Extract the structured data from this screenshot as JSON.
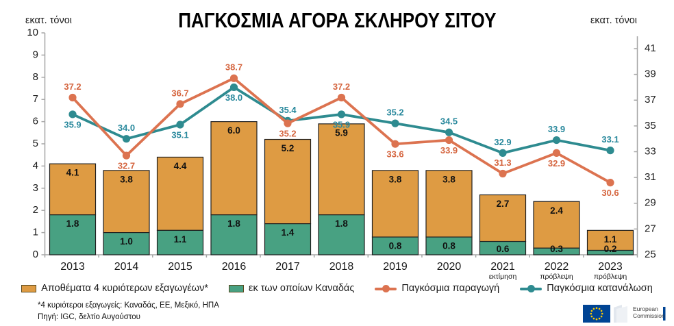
{
  "title": "ΠΑΓΚΟΣΜΙΑ ΑΓΟΡΑ ΣΚΛΗΡΟΥ ΣΙΤΟΥ",
  "axis_units": {
    "left": "εκατ. τόνοι",
    "right": "εκατ. τόνοι"
  },
  "chart_data": {
    "type": "bar",
    "subtype": "stacked-bar-with-lines-combo",
    "categories": [
      "2013",
      "2014",
      "2015",
      "2016",
      "2017",
      "2018",
      "2019",
      "2020",
      "2021",
      "2022",
      "2023"
    ],
    "category_sublabels": [
      "",
      "",
      "",
      "",
      "",
      "",
      "",
      "",
      "εκτίμηση",
      "πρόβλεψη",
      "πρόβλεψη"
    ],
    "series": [
      {
        "name": "Αποθέματα 4 κυριότερων εξαγωγέων*",
        "type": "bar-total",
        "axis": "left",
        "color": "#DE9B43",
        "values": [
          4.1,
          3.8,
          4.4,
          6.0,
          5.2,
          5.9,
          3.8,
          3.8,
          2.7,
          2.4,
          1.1
        ]
      },
      {
        "name": "εκ των οποίων Καναδάς",
        "type": "bar-sub",
        "axis": "left",
        "color": "#48A182",
        "values": [
          1.8,
          1.0,
          1.1,
          1.8,
          1.4,
          1.8,
          0.8,
          0.8,
          0.6,
          0.3,
          0.2
        ]
      },
      {
        "name": "Παγκόσμια παραγωγή",
        "type": "line",
        "axis": "right",
        "color": "#DC7350",
        "label_color": "#D5653F",
        "values": [
          37.2,
          32.7,
          36.7,
          38.7,
          35.2,
          37.2,
          33.6,
          33.9,
          31.3,
          32.9,
          30.6
        ],
        "label_side": [
          "above",
          "below",
          "above",
          "above",
          "below",
          "above",
          "below",
          "below",
          "above",
          "below",
          "below"
        ]
      },
      {
        "name": "Παγκόσμια κατανάλωση",
        "type": "line",
        "axis": "right",
        "color": "#2E8B90",
        "label_color": "#28889C",
        "values": [
          35.9,
          34.0,
          35.1,
          38.0,
          35.4,
          35.9,
          35.2,
          34.5,
          32.9,
          33.9,
          33.1
        ],
        "label_side": [
          "below",
          "above",
          "below",
          "below",
          "above",
          "below",
          "above",
          "above",
          "above",
          "above",
          "above"
        ]
      }
    ],
    "left_axis": {
      "min": 0,
      "max": 10,
      "step": 1
    },
    "right_axis": {
      "min": 25,
      "max": 41,
      "step": 2
    },
    "grid": false,
    "legend_position": "bottom",
    "bar_stroke": "#1f1f1f",
    "axis_color": "#a6a6a6",
    "text_color": "#1a1a1a"
  },
  "footnotes": {
    "line1": "*4 κυριότεροι εξαγωγείς: Καναδάς, ΕΕ, Μεξικό, ΗΠΑ",
    "line2": "Πηγή: IGC, δελτίο Αυγούστου"
  },
  "logo": {
    "line1": "European",
    "line2": "Commission"
  }
}
